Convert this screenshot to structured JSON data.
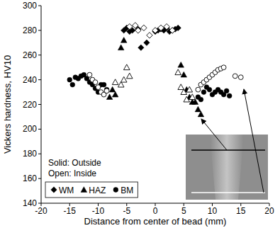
{
  "chart_data": {
    "type": "scatter",
    "x_label": "Distance from center of bead (mm)",
    "y_label": "Vickers hardness, HV10",
    "annotations": [
      "Solid: Outside",
      "Open: Inside"
    ],
    "xlim": [
      -20,
      20
    ],
    "xticks": [
      -20,
      -15,
      -10,
      -5,
      0,
      5,
      10,
      15,
      20
    ],
    "ylim": [
      140,
      300
    ],
    "yticks": [
      140,
      160,
      180,
      200,
      220,
      240,
      260,
      280,
      300
    ],
    "grid": false,
    "legend": "lower left",
    "series": [
      {
        "name": "WM",
        "color": "#000000",
        "marker": "diamond",
        "x": [
          -5.5,
          -5,
          -4.5,
          -4,
          -3,
          -2.5,
          -1.5,
          0,
          0.5,
          1,
          1.5,
          2,
          2.5,
          3,
          3.5,
          4
        ],
        "values": [
          280,
          282,
          279,
          280,
          281,
          266,
          270,
          279,
          280,
          281,
          280,
          282,
          279,
          280,
          281,
          282
        ]
      },
      {
        "name": "HAZ",
        "color": "#000000",
        "marker": "triangle",
        "x": [
          -6,
          -5.5,
          -7.5,
          -7,
          -8,
          4.5,
          5,
          5.5,
          6,
          6.5,
          7,
          7.5,
          8
        ],
        "values": [
          266,
          272,
          232,
          228,
          226,
          252,
          244,
          232,
          226,
          222,
          222,
          216,
          212
        ]
      },
      {
        "name": "BM",
        "color": "#000000",
        "marker": "circle",
        "x": [
          -15,
          -14.5,
          -14,
          -13.5,
          -13,
          -12.5,
          -12,
          -11.5,
          -11,
          -10.5,
          -10,
          -9.5,
          -9,
          -8.5,
          7.5,
          8,
          8.5,
          9,
          9.5,
          10,
          10.5,
          11,
          11.5,
          12,
          12.5,
          13
        ],
        "values": [
          240,
          236,
          242,
          241,
          243,
          244,
          241,
          238,
          236,
          233,
          230,
          236,
          236,
          232,
          226,
          224,
          230,
          234,
          232,
          228,
          230,
          232,
          230,
          228,
          231,
          227
        ]
      },
      {
        "color": "#000000",
        "marker": "diamond-open",
        "x": [
          -4.5,
          -3.5,
          -3,
          -2,
          -1,
          0,
          1,
          2,
          3
        ],
        "values": [
          283,
          284,
          280,
          282,
          276,
          280,
          282,
          283,
          280
        ]
      },
      {
        "color": "#000000",
        "marker": "triangle-open",
        "x": [
          -7,
          -6,
          -5.5,
          -5,
          -4.5,
          4,
          4.5,
          5,
          5.5,
          6,
          6.5
        ],
        "values": [
          238,
          236,
          240,
          250,
          243,
          246,
          234,
          230,
          224,
          232,
          226
        ]
      },
      {
        "color": "#000000",
        "marker": "circle-open",
        "x": [
          -11.5,
          -11,
          -10.5,
          -10,
          -9.5,
          -9,
          -8.5,
          7.5,
          8,
          8.5,
          9,
          9.5,
          10,
          10.5,
          11,
          11.5,
          12,
          14,
          15
        ],
        "values": [
          244,
          240,
          238,
          234,
          230,
          228,
          231,
          232,
          236,
          238,
          240,
          242,
          244,
          246,
          248,
          249,
          250,
          243,
          242
        ]
      }
    ]
  }
}
